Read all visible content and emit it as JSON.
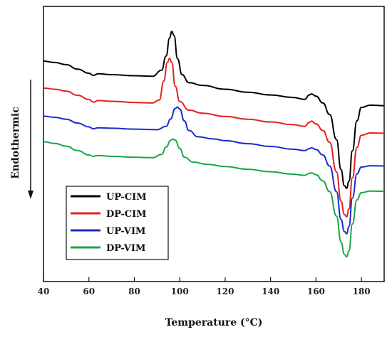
{
  "chart_data": {
    "type": "line",
    "xlabel": "Temperature (°C)",
    "ylabel": "Endothermic",
    "xlim": [
      40,
      190
    ],
    "ylim": [
      0,
      100
    ],
    "xticks": [
      40,
      60,
      80,
      100,
      120,
      140,
      160,
      180
    ],
    "grid": false,
    "legend_position": "bottom-left",
    "series": [
      {
        "name": "UP-CIM",
        "color": "#000000",
        "points": [
          [
            40,
            80.1
          ],
          [
            45,
            79.6
          ],
          [
            50,
            78.8
          ],
          [
            55,
            77.2
          ],
          [
            60,
            75.7
          ],
          [
            62,
            74.9
          ],
          [
            64,
            75.5
          ],
          [
            70,
            75.2
          ],
          [
            80,
            74.8
          ],
          [
            88,
            74.6
          ],
          [
            92,
            76.8
          ],
          [
            94,
            82.0
          ],
          [
            95.5,
            88.5
          ],
          [
            96.5,
            90.9
          ],
          [
            97.5,
            89.4
          ],
          [
            99,
            81.0
          ],
          [
            101,
            75.2
          ],
          [
            104,
            72.3
          ],
          [
            110,
            71.3
          ],
          [
            120,
            69.9
          ],
          [
            130,
            68.8
          ],
          [
            140,
            67.8
          ],
          [
            150,
            66.9
          ],
          [
            155,
            66.2
          ],
          [
            157,
            67.8
          ],
          [
            158,
            68.2
          ],
          [
            160,
            67.4
          ],
          [
            163,
            64.9
          ],
          [
            166,
            60.7
          ],
          [
            169,
            51.6
          ],
          [
            171,
            40.7
          ],
          [
            172.5,
            34.8
          ],
          [
            173.5,
            33.9
          ],
          [
            174.5,
            36.5
          ],
          [
            176,
            47.5
          ],
          [
            178,
            58.4
          ],
          [
            180,
            63.3
          ],
          [
            184,
            64.1
          ],
          [
            190,
            63.9
          ]
        ]
      },
      {
        "name": "DP-CIM",
        "color": "#e4211c",
        "points": [
          [
            40,
            70.3
          ],
          [
            45,
            69.9
          ],
          [
            50,
            69.2
          ],
          [
            55,
            67.7
          ],
          [
            60,
            66.2
          ],
          [
            62,
            65.2
          ],
          [
            64,
            65.8
          ],
          [
            70,
            65.5
          ],
          [
            80,
            65.1
          ],
          [
            88,
            64.9
          ],
          [
            91,
            66.0
          ],
          [
            93,
            72.9
          ],
          [
            94.5,
            79.6
          ],
          [
            95.5,
            81.1
          ],
          [
            96.5,
            79.6
          ],
          [
            98,
            71.0
          ],
          [
            100,
            65.4
          ],
          [
            104,
            62.3
          ],
          [
            110,
            61.2
          ],
          [
            120,
            60.0
          ],
          [
            130,
            59.0
          ],
          [
            140,
            58.0
          ],
          [
            150,
            57.0
          ],
          [
            155,
            56.4
          ],
          [
            157,
            57.8
          ],
          [
            158,
            58.3
          ],
          [
            160,
            57.3
          ],
          [
            163,
            54.9
          ],
          [
            166,
            50.6
          ],
          [
            169,
            39.9
          ],
          [
            171,
            29.2
          ],
          [
            172.5,
            24.4
          ],
          [
            173.5,
            23.6
          ],
          [
            174.5,
            26.4
          ],
          [
            176,
            37.7
          ],
          [
            178,
            48.7
          ],
          [
            180,
            53.2
          ],
          [
            184,
            54.0
          ],
          [
            190,
            53.9
          ]
        ]
      },
      {
        "name": "UP-VIM",
        "color": "#1a2ccc",
        "points": [
          [
            40,
            60.1
          ],
          [
            45,
            59.7
          ],
          [
            50,
            59.0
          ],
          [
            55,
            57.6
          ],
          [
            60,
            56.2
          ],
          [
            62,
            55.5
          ],
          [
            64,
            55.9
          ],
          [
            70,
            55.7
          ],
          [
            80,
            55.4
          ],
          [
            90,
            55.2
          ],
          [
            94,
            56.4
          ],
          [
            96,
            59.1
          ],
          [
            98,
            62.9
          ],
          [
            99,
            63.4
          ],
          [
            100,
            62.7
          ],
          [
            102,
            58.4
          ],
          [
            104,
            54.9
          ],
          [
            108,
            52.6
          ],
          [
            115,
            51.8
          ],
          [
            120,
            51.2
          ],
          [
            130,
            50.1
          ],
          [
            140,
            49.1
          ],
          [
            150,
            48.1
          ],
          [
            155,
            47.6
          ],
          [
            157,
            48.3
          ],
          [
            158,
            48.6
          ],
          [
            160,
            48.0
          ],
          [
            163,
            46.0
          ],
          [
            166,
            42.0
          ],
          [
            169,
            32.7
          ],
          [
            171,
            22.6
          ],
          [
            172.5,
            18.2
          ],
          [
            173.5,
            17.4
          ],
          [
            174.5,
            20.0
          ],
          [
            176,
            30.3
          ],
          [
            178,
            39.1
          ],
          [
            180,
            41.6
          ],
          [
            184,
            42.1
          ],
          [
            190,
            42.0
          ]
        ]
      },
      {
        "name": "DP-VIM",
        "color": "#19a64a",
        "points": [
          [
            40,
            50.8
          ],
          [
            45,
            50.2
          ],
          [
            50,
            49.2
          ],
          [
            55,
            47.6
          ],
          [
            60,
            46.0
          ],
          [
            62,
            45.5
          ],
          [
            64,
            45.8
          ],
          [
            70,
            45.5
          ],
          [
            80,
            45.2
          ],
          [
            88,
            45.0
          ],
          [
            92,
            46.2
          ],
          [
            94,
            48.9
          ],
          [
            96,
            51.3
          ],
          [
            97,
            51.8
          ],
          [
            98,
            51.4
          ],
          [
            100,
            48.4
          ],
          [
            102,
            45.2
          ],
          [
            106,
            43.4
          ],
          [
            112,
            42.6
          ],
          [
            120,
            41.8
          ],
          [
            130,
            40.8
          ],
          [
            140,
            39.9
          ],
          [
            150,
            39.0
          ],
          [
            155,
            38.6
          ],
          [
            157,
            39.3
          ],
          [
            158,
            39.5
          ],
          [
            160,
            38.8
          ],
          [
            163,
            36.6
          ],
          [
            166,
            32.7
          ],
          [
            169,
            23.8
          ],
          [
            171,
            14.4
          ],
          [
            172.5,
            9.9
          ],
          [
            173.5,
            9.0
          ],
          [
            174.5,
            11.2
          ],
          [
            176,
            20.9
          ],
          [
            178,
            29.7
          ],
          [
            180,
            32.3
          ],
          [
            184,
            32.9
          ],
          [
            190,
            32.8
          ]
        ]
      }
    ]
  }
}
